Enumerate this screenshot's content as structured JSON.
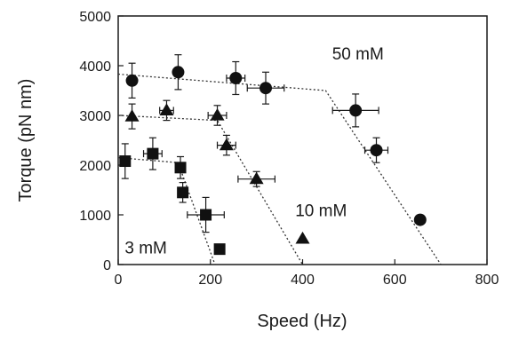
{
  "chart_data": {
    "type": "scatter",
    "xlabel": "Speed (Hz)",
    "ylabel": "Torque (pN nm)",
    "xlim": [
      0,
      800
    ],
    "ylim": [
      0,
      5000
    ],
    "xticks": [
      0,
      200,
      400,
      600,
      800
    ],
    "yticks": [
      0,
      1000,
      2000,
      3000,
      4000,
      5000
    ],
    "grid": false,
    "series": [
      {
        "name": "50 mM",
        "marker": "circle",
        "points": [
          {
            "x": 30,
            "y": 3700,
            "xerr": 0,
            "yerr": 350
          },
          {
            "x": 130,
            "y": 3870,
            "xerr": 0,
            "yerr": 350
          },
          {
            "x": 255,
            "y": 3750,
            "xerr": 20,
            "yerr": 330
          },
          {
            "x": 320,
            "y": 3550,
            "xerr": 40,
            "yerr": 320
          },
          {
            "x": 515,
            "y": 3100,
            "xerr": 50,
            "yerr": 330
          },
          {
            "x": 560,
            "y": 2300,
            "xerr": 25,
            "yerr": 250
          },
          {
            "x": 655,
            "y": 900,
            "xerr": 0,
            "yerr": 0
          }
        ],
        "fit": [
          [
            0,
            3830
          ],
          [
            450,
            3500
          ],
          [
            700,
            0
          ]
        ]
      },
      {
        "name": "10 mM",
        "marker": "triangle",
        "points": [
          {
            "x": 30,
            "y": 2980,
            "xerr": 0,
            "yerr": 250
          },
          {
            "x": 105,
            "y": 3100,
            "xerr": 15,
            "yerr": 200
          },
          {
            "x": 215,
            "y": 3000,
            "xerr": 20,
            "yerr": 200
          },
          {
            "x": 235,
            "y": 2400,
            "xerr": 20,
            "yerr": 200
          },
          {
            "x": 300,
            "y": 1720,
            "xerr": 40,
            "yerr": 150
          },
          {
            "x": 400,
            "y": 520,
            "xerr": 0,
            "yerr": 0
          }
        ],
        "fit": [
          [
            0,
            3000
          ],
          [
            215,
            2900
          ],
          [
            400,
            0
          ]
        ]
      },
      {
        "name": "3 mM",
        "marker": "square",
        "points": [
          {
            "x": 15,
            "y": 2080,
            "xerr": 10,
            "yerr": 350
          },
          {
            "x": 75,
            "y": 2230,
            "xerr": 20,
            "yerr": 320
          },
          {
            "x": 135,
            "y": 1950,
            "xerr": 10,
            "yerr": 220
          },
          {
            "x": 140,
            "y": 1450,
            "xerr": 10,
            "yerr": 200
          },
          {
            "x": 190,
            "y": 1000,
            "xerr": 40,
            "yerr": 350
          },
          {
            "x": 220,
            "y": 310,
            "xerr": 0,
            "yerr": 0
          }
        ],
        "fit": [
          [
            0,
            2150
          ],
          [
            130,
            2050
          ],
          [
            210,
            0
          ]
        ]
      }
    ],
    "annotations": [
      {
        "text": "50 mM",
        "x": 520,
        "y": 4250
      },
      {
        "text": "10 mM",
        "x": 440,
        "y": 1100
      },
      {
        "text": "3 mM",
        "x": 60,
        "y": 350
      }
    ]
  }
}
